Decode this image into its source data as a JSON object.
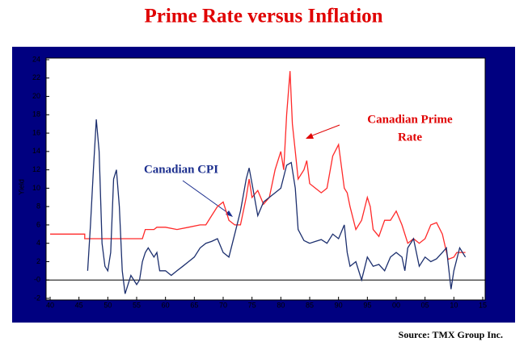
{
  "chart_data": {
    "type": "line",
    "title": "Prime Rate versus Inflation",
    "y_label": "Yield",
    "source": "Source: TMX Group Inc.",
    "annotations": {
      "cpi": "Canadian CPI",
      "prime": [
        "Canadian Prime",
        "Rate"
      ]
    },
    "xlim": [
      40,
      115
    ],
    "xticks": [
      40,
      45,
      50,
      55,
      60,
      65,
      70,
      75,
      80,
      85,
      90,
      95,
      {
        "value": 100,
        "label": "00"
      },
      {
        "value": 105,
        "label": "05"
      },
      {
        "value": 110,
        "label": "10"
      },
      {
        "value": 115,
        "label": "15"
      }
    ],
    "ylim": [
      -2,
      24
    ],
    "yticks": [
      -2,
      {
        "value": 0,
        "label": "-0"
      },
      2,
      4,
      6,
      8,
      10,
      12,
      14,
      16,
      18,
      20,
      22,
      24
    ],
    "series": [
      {
        "name": "Canadian Prime Rate",
        "color": "#ff2a2a",
        "x": [
          40,
          46,
          46,
          56,
          56.5,
          58,
          58.5,
          60,
          62,
          64,
          66,
          67,
          68,
          69,
          70,
          70.5,
          71,
          72,
          73,
          73.5,
          74,
          74.5,
          75,
          76,
          77,
          78,
          79,
          80,
          80.5,
          81,
          81.6,
          82,
          82.5,
          83,
          84,
          84.5,
          85,
          86,
          87,
          88,
          89,
          90,
          91,
          91.5,
          92,
          93,
          94,
          95,
          95.5,
          96,
          97,
          98,
          99,
          100,
          101,
          102,
          103,
          104,
          105,
          106,
          107,
          108,
          109,
          110,
          110.5,
          112
        ],
        "values": [
          5,
          5,
          4.5,
          4.5,
          5.5,
          5.5,
          5.75,
          5.75,
          5.5,
          5.75,
          6,
          6,
          7,
          8,
          8.5,
          7.5,
          6.5,
          6,
          6,
          7.5,
          9,
          11,
          9,
          9.75,
          8.25,
          9,
          12,
          14,
          12,
          18,
          22.75,
          17,
          14,
          11,
          12,
          13,
          10.5,
          10,
          9.5,
          10,
          13.5,
          14.75,
          10,
          9.5,
          8,
          5.5,
          6.5,
          9,
          8,
          5.5,
          4.75,
          6.5,
          6.5,
          7.5,
          6,
          4,
          4.5,
          4,
          4.5,
          6,
          6.25,
          5,
          2.25,
          2.5,
          3,
          3
        ]
      },
      {
        "name": "Canadian CPI",
        "color": "#1c2f6e",
        "x": [
          46.5,
          47,
          47.5,
          48,
          48.5,
          49,
          49.5,
          50,
          50.5,
          51,
          51.5,
          52,
          52.5,
          53,
          53.5,
          54,
          55,
          55.5,
          56,
          56.5,
          57,
          58,
          58.5,
          59,
          60,
          61,
          62,
          63,
          64,
          65,
          66,
          67,
          68,
          69,
          70,
          71,
          72,
          73,
          74,
          74.5,
          75,
          76,
          77,
          78,
          79,
          80,
          81,
          81.8,
          82.5,
          83,
          84,
          85,
          86,
          87,
          88,
          89,
          90,
          91,
          91.5,
          92,
          93,
          94,
          95,
          96,
          97,
          98,
          99,
          100,
          101,
          101.5,
          102,
          103,
          104,
          105,
          106,
          107,
          108,
          108.7,
          109.5,
          110,
          111,
          112
        ],
        "values": [
          1,
          6,
          12,
          17.5,
          14,
          4,
          1.5,
          1,
          3,
          11,
          12,
          8,
          1,
          -1.5,
          -0.5,
          0.5,
          -0.5,
          0,
          2,
          3,
          3.5,
          2.5,
          3,
          1,
          1,
          0.5,
          1,
          1.5,
          2,
          2.5,
          3.5,
          4,
          4.2,
          4.5,
          3,
          2.5,
          5,
          7.5,
          11,
          12.2,
          10.5,
          7,
          8.5,
          9,
          9.5,
          10,
          12.5,
          12.8,
          10,
          5.5,
          4.3,
          4,
          4.2,
          4.4,
          4,
          5,
          4.5,
          6,
          3,
          1.5,
          2,
          0,
          2.5,
          1.5,
          1.7,
          1,
          2.5,
          3,
          2.5,
          1,
          3.5,
          4.5,
          1.5,
          2.5,
          2,
          2.3,
          3,
          3.5,
          -1,
          1,
          3.5,
          2.5
        ]
      }
    ]
  }
}
